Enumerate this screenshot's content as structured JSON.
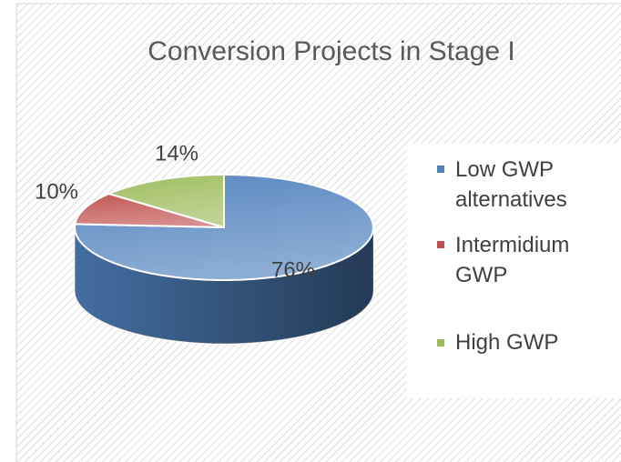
{
  "chart_data": {
    "type": "pie3d",
    "title": "Conversion Projects in Stage I",
    "categories": [
      "Low GWP alternatives",
      "Intermidium GWP",
      "High GWP"
    ],
    "values": [
      76,
      10,
      14
    ],
    "value_labels": [
      "76%",
      "10%",
      "14%"
    ],
    "colors": [
      "#4f81bd",
      "#c0504d",
      "#9bbb59"
    ],
    "legend": "right"
  }
}
